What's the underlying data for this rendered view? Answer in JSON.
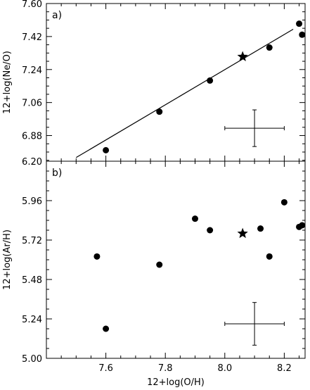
{
  "chart_data": [
    {
      "type": "scatter",
      "panel_label": "a)",
      "ylabel": "12+log(Ne/O)",
      "xlim": [
        7.4,
        8.27
      ],
      "ylim": [
        6.74,
        7.6
      ],
      "xticks": [
        7.6,
        7.8,
        8.0,
        8.2
      ],
      "yticks": [
        6.88,
        7.06,
        7.24,
        7.42,
        7.6
      ],
      "ytick_labels": [
        "6.88",
        "7.06",
        "7.24",
        "7.42",
        "7.60"
      ],
      "points": [
        {
          "x": 7.6,
          "y": 6.8
        },
        {
          "x": 7.78,
          "y": 7.01
        },
        {
          "x": 7.95,
          "y": 7.18
        },
        {
          "x": 8.15,
          "y": 7.36
        },
        {
          "x": 8.25,
          "y": 7.49
        },
        {
          "x": 8.26,
          "y": 7.43
        }
      ],
      "star": {
        "x": 8.06,
        "y": 7.31
      },
      "fit_line": [
        {
          "x": 7.5,
          "y": 6.76
        },
        {
          "x": 8.23,
          "y": 7.46
        }
      ],
      "error_cross": {
        "x": 8.1,
        "y": 6.92,
        "xerr": 0.1,
        "yerr": 0.1
      },
      "grid": false
    },
    {
      "type": "scatter",
      "panel_label": "b)",
      "xlabel": "12+log(O/H)",
      "ylabel": "12+log(Ar/H)",
      "xlim": [
        7.4,
        8.27
      ],
      "ylim": [
        5.0,
        6.2
      ],
      "xticks": [
        7.6,
        7.8,
        8.0,
        8.2
      ],
      "xtick_labels": [
        "7.6",
        "7.8",
        "8.0",
        "8.2"
      ],
      "yticks": [
        5.0,
        5.24,
        5.48,
        5.72,
        5.96,
        6.2
      ],
      "ytick_labels": [
        "5.00",
        "5.24",
        "5.48",
        "5.72",
        "5.96",
        "6.20"
      ],
      "points": [
        {
          "x": 7.57,
          "y": 5.62
        },
        {
          "x": 7.6,
          "y": 5.18
        },
        {
          "x": 7.78,
          "y": 5.57
        },
        {
          "x": 7.9,
          "y": 5.85
        },
        {
          "x": 7.95,
          "y": 5.78
        },
        {
          "x": 8.12,
          "y": 5.79
        },
        {
          "x": 8.15,
          "y": 5.62
        },
        {
          "x": 8.2,
          "y": 5.95
        },
        {
          "x": 8.25,
          "y": 5.8
        },
        {
          "x": 8.26,
          "y": 5.81
        }
      ],
      "star": {
        "x": 8.06,
        "y": 5.76
      },
      "error_cross": {
        "x": 8.1,
        "y": 5.21,
        "xerr": 0.1,
        "yerr": 0.13
      },
      "grid": false
    }
  ]
}
